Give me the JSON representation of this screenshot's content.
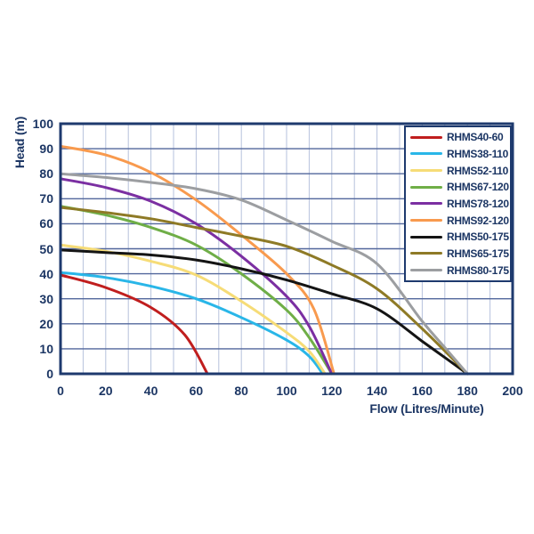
{
  "chart_data": {
    "type": "line",
    "title": "",
    "xlabel": "Flow (Litres/Minute)",
    "ylabel": "Head (m)",
    "xlim": [
      0,
      200
    ],
    "ylim": [
      0,
      100
    ],
    "x_ticks": [
      0,
      20,
      40,
      60,
      80,
      100,
      120,
      140,
      160,
      180,
      200
    ],
    "y_ticks": [
      0,
      10,
      20,
      30,
      40,
      50,
      60,
      70,
      80,
      90,
      100
    ],
    "x_grid_step": 10,
    "y_grid_step": 10,
    "grid": true,
    "legend_position": "top-right",
    "series": [
      {
        "name": "RHMS40-60",
        "color": "#c01e1e",
        "points": [
          [
            0,
            39.5
          ],
          [
            20,
            34.5
          ],
          [
            40,
            26.5
          ],
          [
            55,
            15.5
          ],
          [
            65,
            0
          ]
        ]
      },
      {
        "name": "RHMS38-110",
        "color": "#29b6e8",
        "points": [
          [
            0,
            40.5
          ],
          [
            20,
            38.5
          ],
          [
            40,
            35
          ],
          [
            60,
            30
          ],
          [
            80,
            22.5
          ],
          [
            100,
            13.5
          ],
          [
            110,
            7
          ],
          [
            116,
            0
          ]
        ]
      },
      {
        "name": "RHMS52-110",
        "color": "#f6dc77",
        "points": [
          [
            0,
            51.5
          ],
          [
            20,
            49
          ],
          [
            40,
            45
          ],
          [
            60,
            39.5
          ],
          [
            80,
            29
          ],
          [
            100,
            16.5
          ],
          [
            110,
            9
          ],
          [
            117,
            0
          ]
        ]
      },
      {
        "name": "RHMS67-120",
        "color": "#6fae47",
        "points": [
          [
            0,
            67
          ],
          [
            20,
            63.5
          ],
          [
            40,
            58.5
          ],
          [
            60,
            51.5
          ],
          [
            80,
            40
          ],
          [
            100,
            25.5
          ],
          [
            110,
            14.5
          ],
          [
            120,
            0
          ]
        ]
      },
      {
        "name": "RHMS78-120",
        "color": "#7b2fa2",
        "points": [
          [
            0,
            78
          ],
          [
            20,
            74.5
          ],
          [
            40,
            69
          ],
          [
            60,
            60
          ],
          [
            80,
            47
          ],
          [
            100,
            31
          ],
          [
            110,
            19
          ],
          [
            120,
            0
          ]
        ]
      },
      {
        "name": "RHMS92-120",
        "color": "#f89a4e",
        "points": [
          [
            0,
            91
          ],
          [
            20,
            87.5
          ],
          [
            40,
            80.5
          ],
          [
            60,
            69.5
          ],
          [
            80,
            55.5
          ],
          [
            100,
            40
          ],
          [
            112,
            26
          ],
          [
            121,
            0
          ]
        ]
      },
      {
        "name": "RHMS50-175",
        "color": "#141414",
        "points": [
          [
            0,
            49.5
          ],
          [
            20,
            48.5
          ],
          [
            40,
            47.5
          ],
          [
            60,
            45.5
          ],
          [
            80,
            42
          ],
          [
            100,
            37.5
          ],
          [
            120,
            32
          ],
          [
            140,
            26
          ],
          [
            160,
            13
          ],
          [
            170,
            6.5
          ],
          [
            180,
            0
          ]
        ]
      },
      {
        "name": "RHMS65-175",
        "color": "#8e7a26",
        "points": [
          [
            0,
            66.5
          ],
          [
            20,
            64.5
          ],
          [
            40,
            62
          ],
          [
            60,
            58.5
          ],
          [
            80,
            55
          ],
          [
            100,
            51
          ],
          [
            120,
            43.5
          ],
          [
            140,
            34
          ],
          [
            160,
            18
          ],
          [
            180,
            0
          ]
        ]
      },
      {
        "name": "RHMS80-175",
        "color": "#9c9ea1",
        "points": [
          [
            0,
            80
          ],
          [
            20,
            78.5
          ],
          [
            40,
            76.5
          ],
          [
            60,
            74
          ],
          [
            80,
            69.5
          ],
          [
            100,
            61.5
          ],
          [
            120,
            53
          ],
          [
            140,
            44
          ],
          [
            160,
            21
          ],
          [
            170,
            10.5
          ],
          [
            180,
            0
          ]
        ]
      }
    ]
  },
  "style": {
    "background": "#ffffff",
    "text_color": "#1c3664",
    "plot_border_color": "#1e3a6e",
    "grid_major_color": "#52679c",
    "grid_minor_color": "#b6c2dc",
    "legend_border_color": "#1e3a6e"
  }
}
